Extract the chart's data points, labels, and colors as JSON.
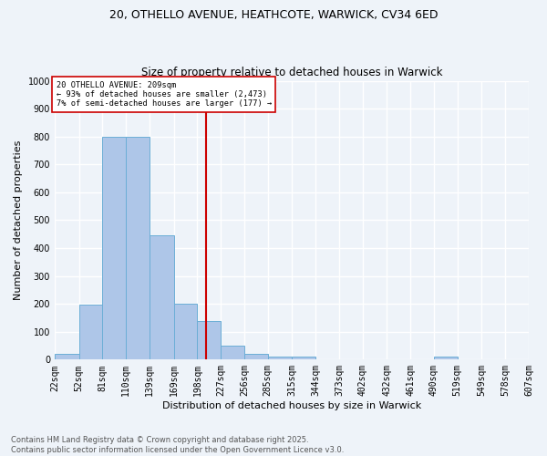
{
  "title_line1": "20, OTHELLO AVENUE, HEATHCOTE, WARWICK, CV34 6ED",
  "title_line2": "Size of property relative to detached houses in Warwick",
  "xlabel": "Distribution of detached houses by size in Warwick",
  "ylabel": "Number of detached properties",
  "footnote": "Contains HM Land Registry data © Crown copyright and database right 2025.\nContains public sector information licensed under the Open Government Licence v3.0.",
  "bar_edges": [
    22,
    52,
    81,
    110,
    139,
    169,
    198,
    227,
    256,
    285,
    315,
    344,
    373,
    402,
    432,
    461,
    490,
    519,
    549,
    578,
    607
  ],
  "bar_heights": [
    20,
    197,
    800,
    800,
    445,
    200,
    140,
    50,
    20,
    12,
    10,
    0,
    0,
    0,
    0,
    0,
    10,
    0,
    0,
    0,
    0
  ],
  "bar_color": "#aec6e8",
  "bar_edge_color": "#6baed6",
  "vline_x": 209,
  "vline_color": "#cc0000",
  "annotation_text": "20 OTHELLO AVENUE: 209sqm\n← 93% of detached houses are smaller (2,473)\n7% of semi-detached houses are larger (177) →",
  "annotation_box_color": "#cc0000",
  "ylim": [
    0,
    1000
  ],
  "yticks": [
    0,
    100,
    200,
    300,
    400,
    500,
    600,
    700,
    800,
    900,
    1000
  ],
  "tick_labels": [
    "22sqm",
    "52sqm",
    "81sqm",
    "110sqm",
    "139sqm",
    "169sqm",
    "198sqm",
    "227sqm",
    "256sqm",
    "285sqm",
    "315sqm",
    "344sqm",
    "373sqm",
    "402sqm",
    "432sqm",
    "461sqm",
    "490sqm",
    "519sqm",
    "549sqm",
    "578sqm",
    "607sqm"
  ],
  "bg_color": "#eef3f9",
  "plot_bg_color": "#eef3f9",
  "grid_color": "#ffffff",
  "title_fontsize": 9,
  "subtitle_fontsize": 8.5,
  "axis_label_fontsize": 8,
  "tick_fontsize": 7,
  "footnote_fontsize": 6
}
